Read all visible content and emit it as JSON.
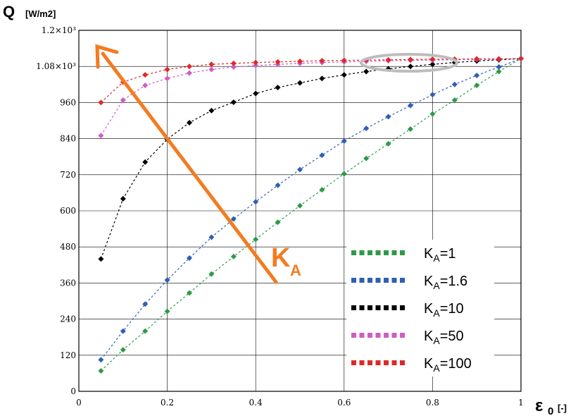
{
  "chart_data": {
    "type": "line",
    "ylabel": "Q",
    "ylabel_unit": "[W/m2]",
    "xlabel": "ε",
    "xlabel_sub": "0",
    "xlabel_unit": "[-]",
    "xlim": [
      0,
      1
    ],
    "ylim": [
      0,
      1200
    ],
    "grid": true,
    "legend_position": "bottom-right",
    "x_ticks": [
      "0",
      "0.2",
      "0.4",
      "0.6",
      "0.8",
      "1"
    ],
    "y_ticks": [
      {
        "value": 0,
        "label": "0"
      },
      {
        "value": 120,
        "label": "120"
      },
      {
        "value": 240,
        "label": "240"
      },
      {
        "value": 360,
        "label": "360"
      },
      {
        "value": 480,
        "label": "480"
      },
      {
        "value": 600,
        "label": "600"
      },
      {
        "value": 720,
        "label": "720"
      },
      {
        "value": 840,
        "label": "840"
      },
      {
        "value": 960,
        "label": "960"
      },
      {
        "value": 1080,
        "label": "1.08×10³"
      },
      {
        "value": 1200,
        "label": "1.2×10³"
      }
    ],
    "annotation": {
      "text": "K",
      "sub": "A"
    },
    "x": [
      0.05,
      0.1,
      0.15,
      0.2,
      0.25,
      0.3,
      0.35,
      0.4,
      0.45,
      0.5,
      0.55,
      0.6,
      0.65,
      0.7,
      0.75,
      0.8,
      0.85,
      0.9,
      0.95,
      1.0
    ],
    "series": [
      {
        "name": "KA=1",
        "name_main": "K",
        "name_sub": "A",
        "name_rest": "=1",
        "color": "#2e9a47",
        "values": [
          68,
          138,
          200,
          266,
          327,
          390,
          448,
          505,
          562,
          617,
          670,
          723,
          774,
          823,
          872,
          922,
          968,
          1017,
          1063,
          1106
        ]
      },
      {
        "name": "KA=1.6",
        "name_main": "K",
        "name_sub": "A",
        "name_rest": "=1.6",
        "color": "#2f5fb4",
        "values": [
          105,
          200,
          290,
          370,
          443,
          512,
          573,
          630,
          685,
          737,
          785,
          832,
          874,
          913,
          950,
          986,
          1020,
          1050,
          1078,
          1106
        ]
      },
      {
        "name": "KA=10",
        "name_main": "K",
        "name_sub": "A",
        "name_rest": "=10",
        "color": "#000000",
        "values": [
          440,
          640,
          762,
          838,
          893,
          933,
          961,
          990,
          1010,
          1025,
          1040,
          1052,
          1063,
          1072,
          1080,
          1087,
          1093,
          1098,
          1102,
          1106
        ]
      },
      {
        "name": "KA=50",
        "name_main": "K",
        "name_sub": "A",
        "name_rest": "=50",
        "color": "#cc5fc4",
        "values": [
          850,
          968,
          1017,
          1040,
          1058,
          1070,
          1078,
          1083,
          1087,
          1090,
          1093,
          1095,
          1097,
          1099,
          1100,
          1101,
          1102,
          1103,
          1104,
          1106
        ]
      },
      {
        "name": "KA=100",
        "name_main": "K",
        "name_sub": "A",
        "name_rest": "=100",
        "color": "#e0282a",
        "values": [
          960,
          1028,
          1052,
          1070,
          1080,
          1087,
          1090,
          1093,
          1095,
          1097,
          1099,
          1100,
          1101,
          1102,
          1103,
          1104,
          1104,
          1105,
          1105,
          1106
        ]
      }
    ]
  }
}
